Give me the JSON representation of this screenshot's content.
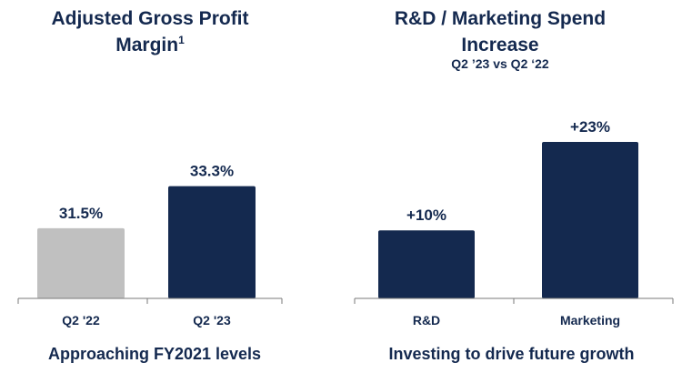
{
  "chart_data": [
    {
      "type": "bar",
      "title": "Adjusted Gross Profit Margin",
      "title_footnote": "1",
      "categories": [
        "Q2 '22",
        "Q2 '23"
      ],
      "values": [
        31.5,
        33.3
      ],
      "data_labels": [
        "31.5%",
        "33.3%"
      ],
      "colors": [
        "#c0c0c0",
        "#14294f"
      ],
      "ylim": [
        28.5,
        34.8
      ],
      "caption": "Approaching FY2021 levels",
      "xlabel": "",
      "ylabel": ""
    },
    {
      "type": "bar",
      "title": "R&D / Marketing Spend Increase",
      "subtitle": "Q2 ’23 vs Q2 ‘22",
      "categories": [
        "R&D",
        "Marketing"
      ],
      "values": [
        10,
        23
      ],
      "data_labels": [
        "+10%",
        "+23%"
      ],
      "colors": [
        "#14294f",
        "#14294f"
      ],
      "ylim": [
        0,
        23
      ],
      "caption": "Investing to drive future growth",
      "xlabel": "",
      "ylabel": ""
    }
  ]
}
